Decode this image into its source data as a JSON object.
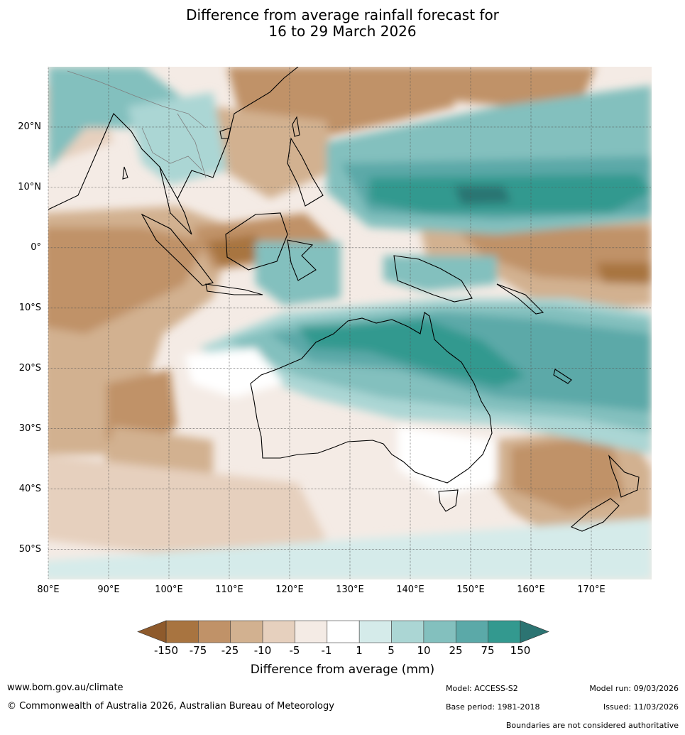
{
  "title": {
    "line1": "Difference from average rainfall forecast for",
    "line2": "16 to 29 March 2026"
  },
  "map": {
    "lat_labels": [
      "20°N",
      "10°N",
      "0°",
      "10°S",
      "20°S",
      "30°S",
      "40°S",
      "50°S"
    ],
    "lon_labels": [
      "80°E",
      "90°E",
      "100°E",
      "110°E",
      "120°E",
      "130°E",
      "140°E",
      "150°E",
      "160°E",
      "170°E"
    ],
    "lat_values": [
      20,
      10,
      0,
      -10,
      -20,
      -30,
      -40,
      -50
    ],
    "lon_values": [
      80,
      90,
      100,
      110,
      120,
      130,
      140,
      150,
      160,
      170
    ],
    "extent": {
      "lon_min": 80,
      "lon_max": 180,
      "lat_min": -55,
      "lat_max": 30
    }
  },
  "colorbar": {
    "title": "Difference from average (mm)",
    "tick_labels": [
      "-150",
      "-75",
      "-25",
      "-10",
      "-5",
      "-1",
      "1",
      "5",
      "10",
      "25",
      "75",
      "150"
    ],
    "colors": [
      "#a87440",
      "#c09268",
      "#d2b190",
      "#e6d0be",
      "#f4ebe5",
      "#ffffff",
      "#d5ebea",
      "#abd6d4",
      "#83c0be",
      "#5ba9a8",
      "#33998f",
      "#2c7472"
    ],
    "low_extend_color": "#8e5a2c",
    "high_extend_color": "#2c7472"
  },
  "footer": {
    "website": "www.bom.gov.au/climate",
    "copyright": "© Commonwealth of Australia 2026, Australian Bureau of Meteorology",
    "model": "Model: ACCESS-S2",
    "base_period": "Base period: 1981-2018",
    "model_run": "Model run: 09/03/2026",
    "issued": "Issued: 11/03/2026",
    "disclaimer": "Boundaries are not considered authoritative"
  }
}
